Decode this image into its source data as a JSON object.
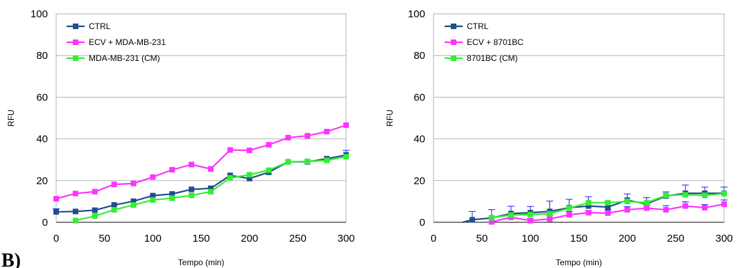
{
  "panel_letter": "B)",
  "chart_data": [
    {
      "type": "line",
      "xlabel": "Tempo (min)",
      "ylabel": "RFU",
      "xlim": [
        0,
        300
      ],
      "ylim": [
        0,
        100
      ],
      "xticks": [
        0,
        50,
        100,
        150,
        200,
        250,
        300
      ],
      "yticks": [
        0,
        20,
        40,
        60,
        80,
        100
      ],
      "grid": "horizontal",
      "legend": "top-left",
      "series": [
        {
          "name": "CTRL",
          "color": "#1f4e8c",
          "x": [
            0,
            20,
            40,
            60,
            80,
            100,
            120,
            140,
            160,
            180,
            200,
            220,
            240,
            260,
            280,
            300
          ],
          "y": [
            5,
            5.2,
            5.8,
            8.3,
            10.1,
            12.8,
            13.6,
            15.8,
            16.3,
            22.5,
            21,
            24,
            29,
            29,
            30.5,
            32.3
          ],
          "err": [
            1.5,
            0,
            0,
            0,
            0,
            0,
            0,
            0,
            0,
            0,
            0,
            0,
            0,
            0,
            0,
            0
          ]
        },
        {
          "name": "ECV + MDA-MB-231",
          "color": "#ff33ff",
          "x": [
            0,
            20,
            40,
            60,
            80,
            100,
            120,
            140,
            160,
            180,
            200,
            220,
            240,
            260,
            280,
            300
          ],
          "y": [
            11.3,
            13.8,
            14.7,
            18.2,
            18.6,
            21.7,
            25.2,
            27.7,
            25.6,
            34.7,
            34.5,
            37.2,
            40.6,
            41.5,
            43.5,
            46.6
          ],
          "err": [
            0,
            0,
            0,
            0,
            0,
            0,
            0,
            0,
            0,
            0,
            0,
            0,
            0,
            0,
            0,
            0
          ]
        },
        {
          "name": "MDA-MB-231 (CM)",
          "color": "#33ee33",
          "x": [
            20,
            40,
            60,
            80,
            100,
            120,
            140,
            160,
            180,
            200,
            220,
            240,
            260,
            280,
            300
          ],
          "y": [
            0.8,
            3,
            6,
            8.3,
            10.7,
            11.6,
            12.9,
            14.7,
            21.3,
            22.8,
            25,
            29,
            29.2,
            29.7,
            31.5
          ],
          "err": [
            0,
            0,
            0,
            0,
            0,
            0,
            0,
            0,
            0,
            0,
            0,
            0,
            0,
            0,
            3
          ]
        }
      ]
    },
    {
      "type": "line",
      "xlabel": "Tempo (min)",
      "ylabel": "RFU",
      "xlim": [
        0,
        300
      ],
      "ylim": [
        0,
        100
      ],
      "xticks": [
        0,
        50,
        100,
        150,
        200,
        250,
        300
      ],
      "yticks": [
        0,
        20,
        40,
        60,
        80,
        100
      ],
      "grid": "horizontal",
      "legend": "top-left",
      "series": [
        {
          "name": "CTRL",
          "color": "#1f4e8c",
          "x": [
            30,
            40,
            60,
            80,
            100,
            120,
            140,
            160,
            180,
            200,
            220,
            240,
            260,
            280,
            300
          ],
          "y": [
            0,
            1.2,
            2.1,
            4.2,
            4.6,
            5.2,
            7,
            7.8,
            7.3,
            10.6,
            8.8,
            12.6,
            13.9,
            13.9,
            13.9
          ],
          "err": [
            0,
            4,
            4,
            3.5,
            3,
            5,
            4,
            4.5,
            2.5,
            3,
            3,
            2,
            4,
            3,
            3
          ]
        },
        {
          "name": "ECV + 8701BC",
          "color": "#ff33ff",
          "x": [
            60,
            80,
            100,
            120,
            140,
            160,
            180,
            200,
            220,
            240,
            260,
            280,
            300
          ],
          "y": [
            0.2,
            2.4,
            0.8,
            1.6,
            3.6,
            4.6,
            4.4,
            6,
            6.8,
            6,
            7.8,
            7,
            8.7
          ],
          "err": [
            0,
            1,
            1,
            1.5,
            1.5,
            1,
            1.5,
            1.5,
            1.5,
            2,
            2,
            1.5,
            2
          ]
        },
        {
          "name": "8701BC (CM)",
          "color": "#33ee33",
          "x": [
            60,
            80,
            100,
            120,
            140,
            160,
            180,
            200,
            220,
            240,
            260,
            280,
            300
          ],
          "y": [
            2.2,
            3.5,
            3.7,
            4.1,
            6.8,
            9.4,
            9.4,
            10,
            9.4,
            12.9,
            13.2,
            12.9,
            13.8
          ],
          "err": [
            0,
            0,
            0,
            0,
            0,
            0,
            0,
            0,
            0,
            0,
            0,
            0,
            0
          ]
        }
      ]
    }
  ]
}
